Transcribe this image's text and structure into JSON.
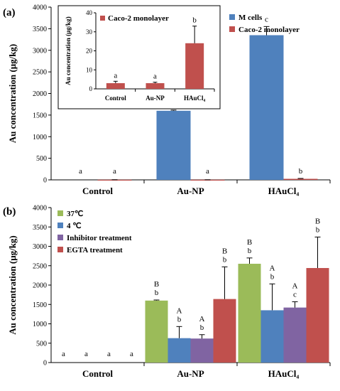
{
  "chart_data": [
    {
      "panel": "(a)",
      "type": "bar",
      "ylabel": "Au concentration (μg/kg)",
      "ylim": [
        0,
        4000
      ],
      "yticks": [
        0,
        500,
        1000,
        1500,
        2000,
        2500,
        3000,
        3500,
        4000
      ],
      "categories": [
        "Control",
        "Au-NP",
        "HAuCl₄"
      ],
      "legend_position": "top-right",
      "series": [
        {
          "name": "M cells",
          "color": "#4f81bd",
          "values": [
            0,
            1600,
            3350
          ],
          "errors": [
            0,
            15,
            200
          ],
          "letters": [
            "a",
            "b",
            "c"
          ]
        },
        {
          "name": "Caco-2 monolayer",
          "color": "#c0504d",
          "values": [
            3,
            3,
            24
          ],
          "errors": [
            1,
            0.5,
            9
          ],
          "letters": [
            "a",
            "a",
            "b"
          ]
        }
      ],
      "inset": {
        "ylabel": "Au concentration (μg/kg)",
        "ylim": [
          0,
          40
        ],
        "yticks": [
          0,
          10,
          20,
          30,
          40
        ],
        "categories": [
          "Control",
          "Au-NP",
          "HAuCl₄"
        ],
        "series": [
          {
            "name": "Caco-2 monolayer",
            "color": "#c0504d",
            "values": [
              3,
              3,
              24
            ],
            "errors": [
              1,
              0.5,
              9
            ],
            "letters": [
              "a",
              "a",
              "b"
            ]
          }
        ]
      }
    },
    {
      "panel": "(b)",
      "type": "bar",
      "ylabel": "Au concentration (μg/kg)",
      "ylim": [
        0,
        4000
      ],
      "yticks": [
        0,
        500,
        1000,
        1500,
        2000,
        2500,
        3000,
        3500,
        4000
      ],
      "categories": [
        "Control",
        "Au-NP",
        "HAuCl₄"
      ],
      "legend_position": "top-left",
      "series": [
        {
          "name": "37℃",
          "color": "#9bbb59",
          "values": [
            0,
            1600,
            2550
          ],
          "errors": [
            0,
            15,
            150
          ],
          "upper": [
            "",
            "B",
            "B"
          ],
          "letters": [
            "a",
            "b",
            "b"
          ]
        },
        {
          "name": "4 ℃",
          "color": "#4f81bd",
          "values": [
            0,
            630,
            1350
          ],
          "errors": [
            0,
            300,
            680
          ],
          "upper": [
            "",
            "A",
            "A"
          ],
          "letters": [
            "a",
            "b",
            "b"
          ]
        },
        {
          "name": "Inhibitor treatment",
          "color": "#8064a2",
          "values": [
            0,
            620,
            1420
          ],
          "errors": [
            0,
            100,
            150
          ],
          "upper": [
            "",
            "A",
            "A"
          ],
          "letters": [
            "a",
            "b",
            "c"
          ]
        },
        {
          "name": "EGTA treatment",
          "color": "#c0504d",
          "values": [
            0,
            1640,
            2440
          ],
          "errors": [
            0,
            830,
            800
          ],
          "upper": [
            "",
            "B",
            "B"
          ],
          "letters": [
            "a",
            "b",
            "b"
          ]
        }
      ]
    }
  ]
}
